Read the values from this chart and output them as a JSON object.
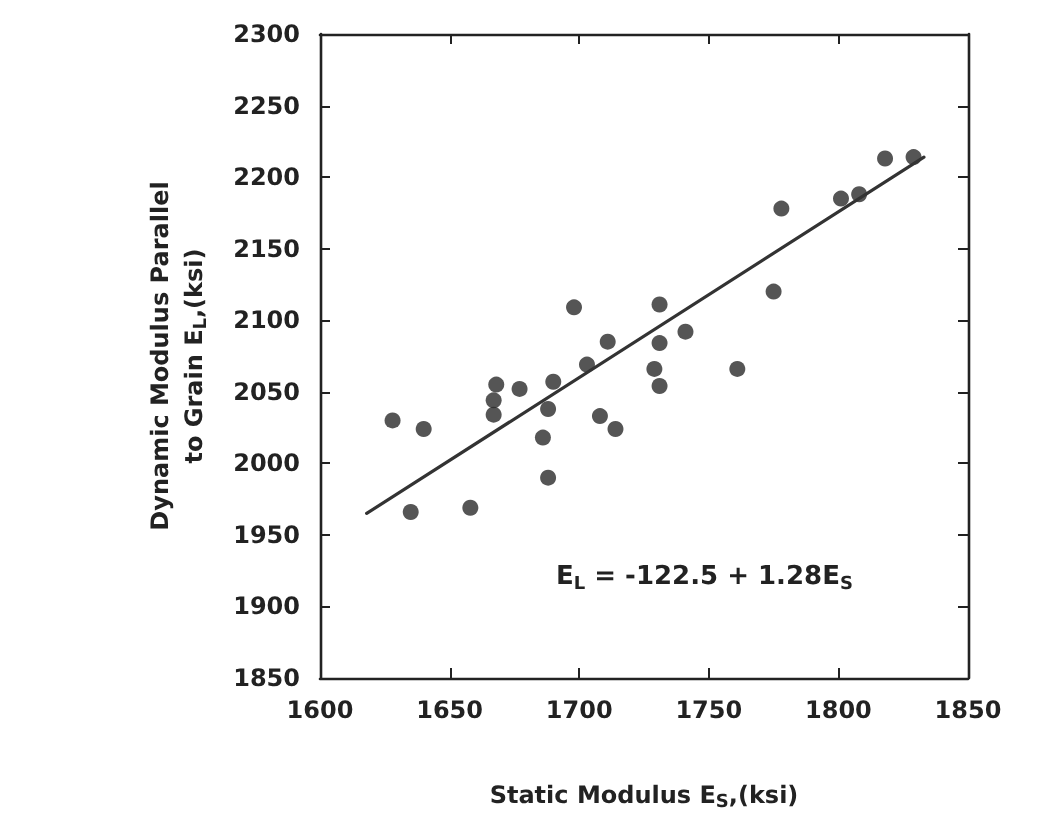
{
  "chart_data": {
    "type": "scatter",
    "xlabel": "Static Modulus E$_{S}$,(ksi)",
    "ylabel": "Dynamic Modulus Parallel to Grain E$_{L}$,(ksi)",
    "annotations": [
      "E$_{L}$ = -122.5 + 1.28E$_{S}$"
    ],
    "series": [
      {
        "color": "#2a2a2a",
        "marker": "circle",
        "x": [
          1628,
          1640,
          1635,
          1658,
          1668,
          1667,
          1667,
          1677,
          1690,
          1688,
          1686,
          1688,
          1698,
          1703,
          1711,
          1708,
          1714,
          1731,
          1731,
          1741,
          1729,
          1731,
          1761,
          1775,
          1778,
          1801,
          1808,
          1818,
          1829
        ],
        "values": [
          2030,
          2024,
          1966,
          1969,
          2055,
          2044,
          2034,
          2052,
          2057,
          2038,
          2018,
          1990,
          2109,
          2069,
          2085,
          2033,
          2024,
          2111,
          2084,
          2092,
          2066,
          2054,
          2066,
          2120,
          2178,
          2185,
          2188,
          2213,
          2214
        ]
      },
      {
        "type": "line",
        "color": "#333333",
        "marker": "none",
        "line_style": "solid",
        "x": [
          1618,
          1833
        ],
        "values": [
          1965,
          2214
        ]
      }
    ],
    "xlim": [
      1600,
      1850
    ],
    "xticks": [
      1600,
      1650,
      1700,
      1750,
      1800,
      1850
    ],
    "ylim": [
      1850,
      2300
    ],
    "yticks": [
      1850,
      1900,
      1950,
      2000,
      2050,
      2100,
      2150,
      2200,
      2250,
      2300
    ],
    "grid": false
  }
}
